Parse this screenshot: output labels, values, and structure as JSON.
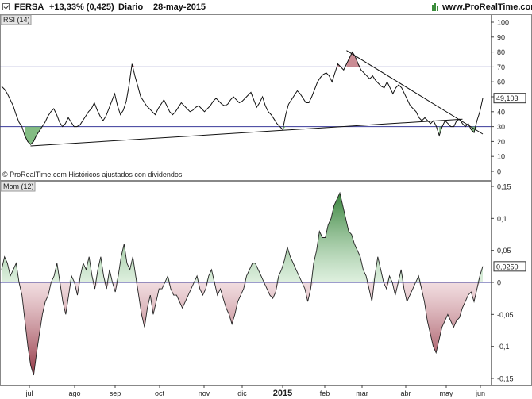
{
  "header": {
    "ticker": "FERSA",
    "change": "+13,33% (0,425)",
    "period": "Diario",
    "date": "28-may-2015",
    "site": "www.ProRealTime.com"
  },
  "colors": {
    "up": "#4caf50",
    "down": "#d9534f",
    "level_line": "#3a3a99",
    "pos_fill": "#5aa55a",
    "neg_fill": "#b86670",
    "price_line": "#111111"
  },
  "chart_data": [
    {
      "type": "line",
      "name": "rsi-panel",
      "title": "RSI (14)",
      "watermark": "© ProRealTime.com  Históricos ajustados con dividendos",
      "x_ticks": [
        "jul",
        "ago",
        "sep",
        "oct",
        "nov",
        "dic",
        "2015",
        "feb",
        "mar",
        "abr",
        "may",
        "jun"
      ],
      "y_ticks": [
        "100",
        "90",
        "80",
        "70",
        "60",
        "50",
        "40",
        "30",
        "20",
        "10",
        "0"
      ],
      "ylim": [
        0,
        100
      ],
      "levels": [
        70,
        30
      ],
      "last_value": "49,103",
      "series": [
        {
          "values": [
            57,
            55,
            52,
            48,
            44,
            38,
            33,
            30,
            24,
            20,
            18,
            20,
            24,
            27,
            30,
            33,
            37,
            40,
            42,
            38,
            33,
            30,
            32,
            36,
            33,
            30,
            30,
            31,
            34,
            37,
            40,
            42,
            46,
            41,
            37,
            34,
            37,
            42,
            47,
            52,
            44,
            38,
            41,
            47,
            58,
            72,
            64,
            57,
            50,
            47,
            44,
            42,
            40,
            38,
            42,
            45,
            48,
            44,
            40,
            38,
            40,
            43,
            46,
            44,
            42,
            40,
            41,
            43,
            44,
            42,
            40,
            42,
            44,
            47,
            49,
            47,
            45,
            44,
            45,
            48,
            50,
            48,
            46,
            47,
            49,
            51,
            53,
            48,
            43,
            46,
            50,
            44,
            40,
            38,
            35,
            32,
            30,
            28,
            38,
            45,
            48,
            51,
            54,
            52,
            49,
            46,
            46,
            50,
            55,
            60,
            63,
            65,
            66,
            64,
            60,
            66,
            72,
            70,
            68,
            72,
            76,
            80,
            77,
            72,
            68,
            66,
            64,
            62,
            64,
            61,
            59,
            57,
            56,
            60,
            56,
            52,
            56,
            58,
            56,
            52,
            48,
            44,
            42,
            40,
            36,
            34,
            36,
            34,
            32,
            34,
            30,
            24,
            30,
            34,
            32,
            30,
            30,
            34,
            35,
            32,
            30,
            32,
            28,
            26,
            34,
            40,
            49
          ]
        }
      ],
      "trendlines": [
        {
          "from": [
            10,
            17
          ],
          "to": [
            159,
            35
          ]
        },
        {
          "from": [
            119,
            81
          ],
          "to": [
            166,
            25
          ]
        }
      ]
    },
    {
      "type": "area",
      "name": "momentum-panel",
      "title": "Mom (12)",
      "x_ticks": [
        "jul",
        "ago",
        "sep",
        "oct",
        "nov",
        "dic",
        "2015",
        "feb",
        "mar",
        "abr",
        "may",
        "jun"
      ],
      "y_ticks": [
        "0,15",
        "0,1",
        "0,05",
        "0",
        "-0,05",
        "-0,1",
        "-0,15"
      ],
      "ylim": [
        -0.15,
        0.15
      ],
      "last_value": "0,0250",
      "series": [
        {
          "values": [
            0.02,
            0.04,
            0.03,
            0.01,
            0.02,
            0.03,
            0.0,
            -0.02,
            -0.06,
            -0.1,
            -0.13,
            -0.145,
            -0.11,
            -0.08,
            -0.05,
            -0.03,
            -0.02,
            0.0,
            0.01,
            0.03,
            0.0,
            -0.03,
            -0.05,
            -0.02,
            0.01,
            0.0,
            -0.02,
            0.01,
            0.03,
            0.02,
            0.04,
            0.01,
            -0.01,
            0.02,
            0.04,
            0.01,
            -0.01,
            0.02,
            0.0,
            -0.015,
            0.01,
            0.04,
            0.06,
            0.03,
            0.02,
            0.04,
            0.01,
            -0.02,
            -0.05,
            -0.07,
            -0.04,
            -0.02,
            -0.05,
            -0.03,
            -0.01,
            -0.01,
            0.0,
            0.01,
            -0.01,
            -0.02,
            -0.02,
            -0.03,
            -0.04,
            -0.03,
            -0.02,
            -0.01,
            0.0,
            0.01,
            -0.01,
            -0.02,
            -0.01,
            0.01,
            0.02,
            0.0,
            -0.02,
            -0.01,
            -0.025,
            -0.04,
            -0.05,
            -0.065,
            -0.05,
            -0.03,
            -0.02,
            -0.01,
            0.01,
            0.02,
            0.03,
            0.03,
            0.02,
            0.01,
            0.0,
            -0.01,
            -0.02,
            -0.025,
            -0.015,
            0.01,
            0.02,
            0.035,
            0.055,
            0.04,
            0.03,
            0.02,
            0.01,
            0.0,
            -0.01,
            -0.03,
            -0.01,
            0.03,
            0.05,
            0.08,
            0.07,
            0.07,
            0.09,
            0.1,
            0.12,
            0.13,
            0.14,
            0.12,
            0.1,
            0.08,
            0.075,
            0.06,
            0.05,
            0.04,
            0.02,
            0.01,
            -0.01,
            -0.03,
            0.01,
            0.04,
            0.02,
            0.0,
            -0.01,
            0.01,
            0.0,
            -0.02,
            0.0,
            0.02,
            -0.01,
            -0.03,
            -0.02,
            -0.01,
            0.0,
            0.01,
            -0.01,
            -0.03,
            -0.06,
            -0.08,
            -0.1,
            -0.11,
            -0.09,
            -0.07,
            -0.06,
            -0.05,
            -0.06,
            -0.07,
            -0.06,
            -0.055,
            -0.04,
            -0.03,
            -0.02,
            -0.015,
            -0.03,
            -0.01,
            0.01,
            0.025
          ]
        }
      ]
    }
  ]
}
